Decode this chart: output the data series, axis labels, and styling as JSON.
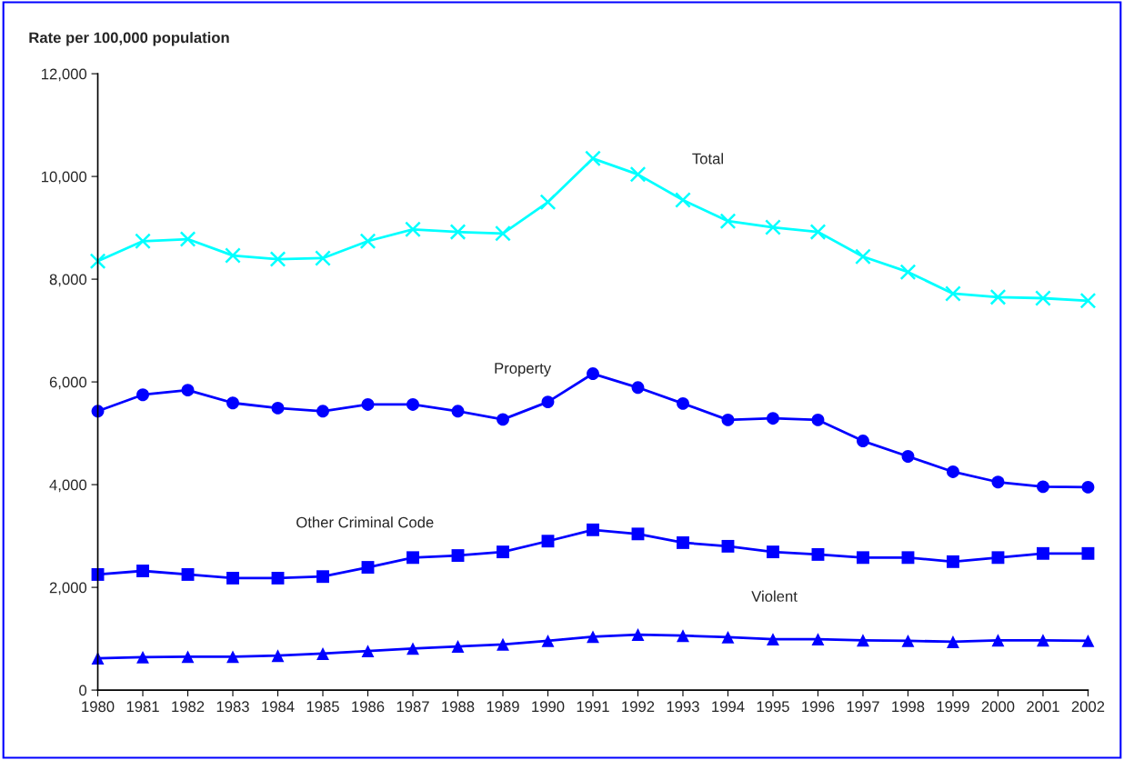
{
  "chart_data": {
    "type": "line",
    "ylabel": "Rate per 100,000 population",
    "categories": [
      "1980",
      "1981",
      "1982",
      "1983",
      "1984",
      "1985",
      "1986",
      "1987",
      "1988",
      "1989",
      "1990",
      "1991",
      "1992",
      "1993",
      "1994",
      "1995",
      "1996",
      "1997",
      "1998",
      "1999",
      "2000",
      "2001",
      "2002"
    ],
    "series": [
      {
        "name": "Total",
        "color": "#00ffff",
        "marker": "cross",
        "values": [
          8350,
          8740,
          8780,
          8460,
          8390,
          8410,
          8740,
          8970,
          8920,
          8890,
          9500,
          10350,
          10040,
          9540,
          9130,
          9010,
          8920,
          8440,
          8140,
          7720,
          7650,
          7630,
          7580
        ]
      },
      {
        "name": "Property",
        "color": "#0000ff",
        "marker": "circle",
        "values": [
          5430,
          5750,
          5840,
          5590,
          5490,
          5430,
          5560,
          5560,
          5430,
          5270,
          5610,
          6160,
          5890,
          5580,
          5260,
          5290,
          5260,
          4850,
          4550,
          4250,
          4050,
          3960,
          3950
        ]
      },
      {
        "name": "Other Criminal Code",
        "color": "#0000ff",
        "marker": "square",
        "values": [
          2250,
          2320,
          2250,
          2180,
          2180,
          2210,
          2390,
          2580,
          2620,
          2690,
          2900,
          3120,
          3040,
          2870,
          2800,
          2690,
          2640,
          2580,
          2580,
          2500,
          2580,
          2660,
          2660
        ]
      },
      {
        "name": "Violent",
        "color": "#0000ff",
        "marker": "triangle",
        "values": [
          620,
          640,
          650,
          650,
          670,
          710,
          760,
          810,
          850,
          890,
          960,
          1040,
          1080,
          1060,
          1030,
          990,
          990,
          970,
          960,
          940,
          970,
          970,
          960
        ]
      }
    ],
    "ylim": [
      0,
      12000
    ],
    "yticks": [
      0,
      {
        "value": 2000,
        "label": "2,000"
      },
      {
        "value": 4000,
        "label": "4,000"
      },
      {
        "value": 6000,
        "label": "6,000"
      },
      {
        "value": 8000,
        "label": "8,000"
      },
      {
        "value": 10000,
        "label": "10,000"
      },
      {
        "value": 12000,
        "label": "12,000"
      }
    ],
    "grid": false,
    "legend": false,
    "line_style": "solid"
  }
}
